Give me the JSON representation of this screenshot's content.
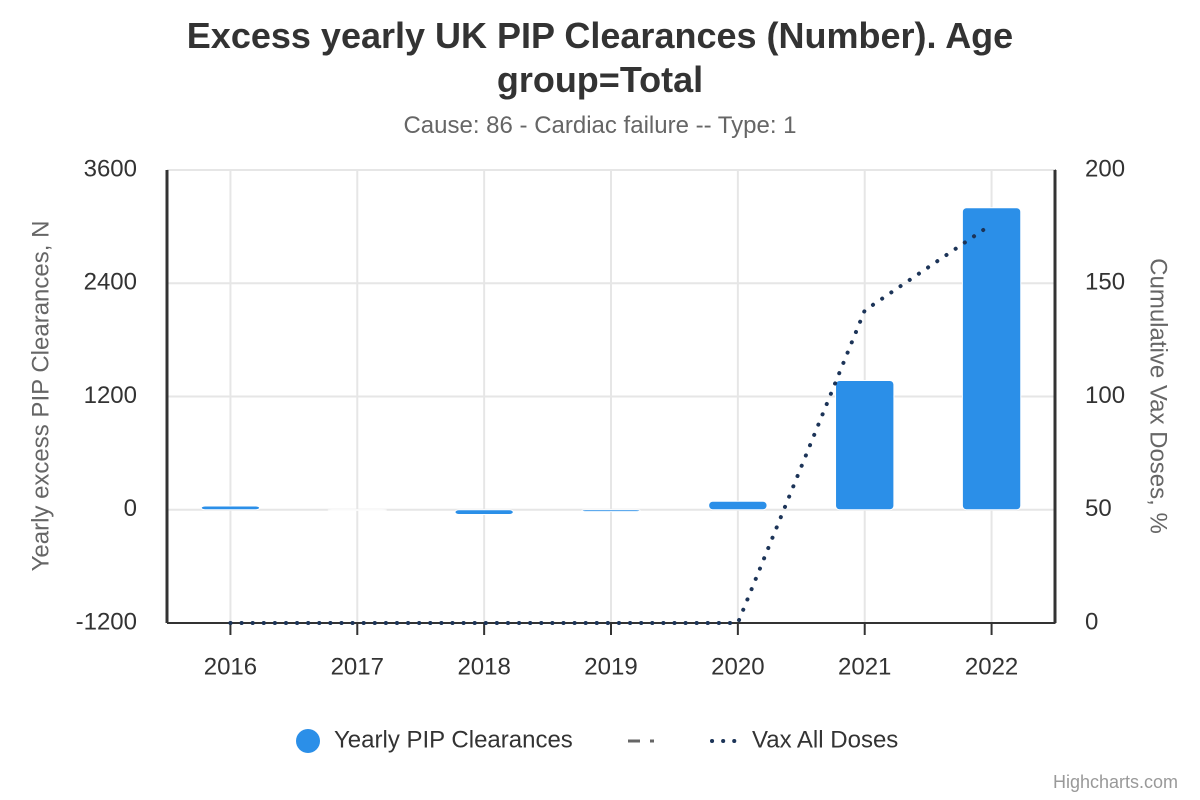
{
  "chart_data": {
    "type": "bar",
    "title": "Excess yearly UK PIP Clearances (Number). Age group=Total",
    "subtitle": "Cause: 86 - Cardiac failure -- Type: 1",
    "y_label": "Yearly excess PIP Clearances, N",
    "y2_label": "Cumulative Vax Doses, %",
    "categories": [
      "2016",
      "2017",
      "2018",
      "2019",
      "2020",
      "2021",
      "2022"
    ],
    "series": [
      {
        "name": "Yearly PIP Clearances",
        "type": "bar",
        "color": "#2b8fe8",
        "values": [
          40,
          0,
          -50,
          -20,
          90,
          1370,
          3200
        ]
      },
      {
        "name": "Vax All Doses",
        "type": "line",
        "axis": "y2",
        "color": "#1c3458",
        "values": [
          0,
          0,
          0,
          0,
          0,
          138,
          176
        ]
      }
    ],
    "ylim": [
      -1200,
      3600
    ],
    "yticks": [
      -1200,
      0,
      1200,
      2400,
      3600
    ],
    "y2lim": [
      0,
      200
    ],
    "y2ticks": [
      0,
      50,
      100,
      150,
      200
    ],
    "grid": true,
    "credits": "Highcharts.com"
  }
}
